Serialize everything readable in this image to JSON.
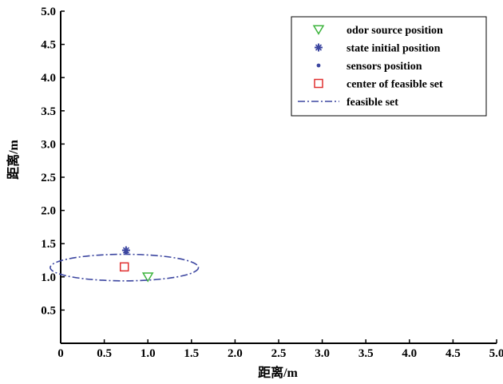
{
  "chart_data": {
    "type": "scatter",
    "title": "",
    "xlabel": "距离/m",
    "ylabel": "距离/m",
    "xlim": [
      0,
      5
    ],
    "ylim": [
      0,
      5
    ],
    "xticks": [
      "0",
      "0.5",
      "1.0",
      "1.5",
      "2.0",
      "2.5",
      "3.0",
      "3.5",
      "4.0",
      "4.5",
      "5.0"
    ],
    "yticks": [
      "0.5",
      "1.0",
      "1.5",
      "2.0",
      "2.5",
      "3.0",
      "3.5",
      "4.0",
      "4.5",
      "5.0"
    ],
    "grid": false,
    "legend_position": "top-right",
    "series": [
      {
        "name": "odor source position",
        "marker": "triangle-down",
        "color": "#3cb43c",
        "x": [
          1.0
        ],
        "y": [
          1.0
        ]
      },
      {
        "name": "state initial position",
        "marker": "star",
        "color": "#3c46a0",
        "x": [
          0.75
        ],
        "y": [
          1.4
        ]
      },
      {
        "name": "sensors position",
        "marker": "dot",
        "color": "#3c46a0",
        "x": [
          0.75
        ],
        "y": [
          1.37
        ]
      },
      {
        "name": "center of feasible set",
        "marker": "square",
        "color": "#e03030",
        "x": [
          0.73
        ],
        "y": [
          1.15
        ]
      },
      {
        "name": "feasible set",
        "marker": "dash-dot-ellipse",
        "color": "#3c46a0",
        "cx": 0.73,
        "cy": 1.14,
        "rx": 0.85,
        "ry": 0.2
      }
    ]
  }
}
